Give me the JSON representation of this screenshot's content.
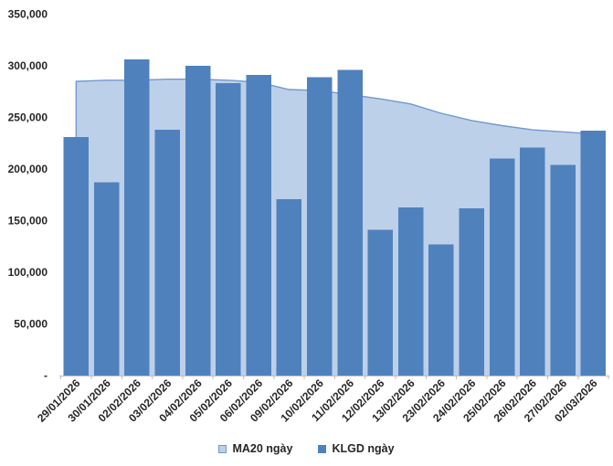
{
  "chart_data": {
    "type": "combo_area_bar",
    "title": "",
    "categories": [
      "29/01/2026",
      "30/01/2026",
      "02/02/2026",
      "03/02/2026",
      "04/02/2026",
      "05/02/2026",
      "06/02/2026",
      "09/02/2026",
      "10/02/2026",
      "11/02/2026",
      "12/02/2026",
      "13/02/2026",
      "23/02/2026",
      "24/02/2026",
      "25/02/2026",
      "26/02/2026",
      "27/02/2026",
      "02/03/2026"
    ],
    "series": [
      {
        "name": "MA20 ngày",
        "type": "area",
        "fill": "#BDD0E9",
        "stroke": "#7298CE",
        "values": [
          285000,
          286000,
          286000,
          287000,
          287000,
          286000,
          284000,
          277000,
          276000,
          272000,
          268000,
          263000,
          254000,
          247000,
          242000,
          238000,
          236000,
          234000
        ]
      },
      {
        "name": "KLGD ngày",
        "type": "bar",
        "fill": "#4F81BD",
        "values": [
          231000,
          187000,
          306000,
          238000,
          300000,
          283000,
          291000,
          171000,
          289000,
          296000,
          141000,
          163000,
          127000,
          162000,
          210000,
          221000,
          204000,
          237000
        ]
      }
    ],
    "ylim": [
      0,
      350000
    ],
    "ytick_step": 50000,
    "ytick_labels": [
      "-",
      "50,000",
      "100,000",
      "150,000",
      "200,000",
      "250,000",
      "300,000",
      "350,000"
    ],
    "grid": false,
    "legend_position": "bottom",
    "axis_color": "#BFBFBF",
    "text_color": "#262626"
  }
}
